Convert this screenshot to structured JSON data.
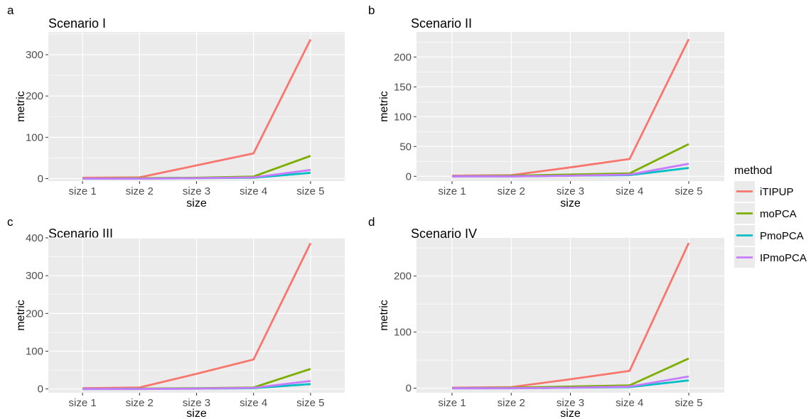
{
  "legend": {
    "title": "method",
    "placement": "right",
    "items": [
      {
        "label": "iTIPUP",
        "color": "#F8766D"
      },
      {
        "label": "moPCA",
        "color": "#7CAE00"
      },
      {
        "label": "PmoPCA",
        "color": "#00BFC4"
      },
      {
        "label": "IPmoPCA",
        "color": "#C77CFF"
      }
    ]
  },
  "colors": {
    "panel_bg": "#EBEBEB",
    "grid": "#FFFFFF",
    "tick_text": "#4D4D4D"
  },
  "chart_data": [
    {
      "type": "line",
      "letter": "a",
      "title": "Scenario I",
      "xlabel": "size",
      "ylabel": "metric",
      "categories": [
        "size 1",
        "size 2",
        "size 3",
        "size 4",
        "size 5"
      ],
      "ylim": [
        -6,
        355
      ],
      "yticks": [
        0,
        100,
        200,
        300
      ],
      "grid": true,
      "series": [
        {
          "name": "iTIPUP",
          "values": [
            2,
            3,
            32,
            61,
            337
          ]
        },
        {
          "name": "moPCA",
          "values": [
            0,
            1,
            2,
            5,
            55
          ]
        },
        {
          "name": "PmoPCA",
          "values": [
            0,
            0,
            1,
            2,
            14
          ]
        },
        {
          "name": "IPmoPCA",
          "values": [
            0,
            0,
            1,
            3,
            21
          ]
        }
      ]
    },
    {
      "type": "line",
      "letter": "b",
      "title": "Scenario II",
      "xlabel": "size",
      "ylabel": "metric",
      "categories": [
        "size 1",
        "size 2",
        "size 3",
        "size 4",
        "size 5"
      ],
      "ylim": [
        -8,
        242
      ],
      "yticks": [
        0,
        50,
        100,
        150,
        200
      ],
      "grid": true,
      "series": [
        {
          "name": "iTIPUP",
          "values": [
            1,
            2,
            15,
            29,
            230
          ]
        },
        {
          "name": "moPCA",
          "values": [
            0,
            1,
            3,
            5,
            54
          ]
        },
        {
          "name": "PmoPCA",
          "values": [
            0,
            0,
            1,
            2,
            14
          ]
        },
        {
          "name": "IPmoPCA",
          "values": [
            0,
            0,
            1,
            3,
            21
          ]
        }
      ]
    },
    {
      "type": "line",
      "letter": "c",
      "title": "Scenario III",
      "xlabel": "size",
      "ylabel": "metric",
      "categories": [
        "size 1",
        "size 2",
        "size 3",
        "size 4",
        "size 5"
      ],
      "ylim": [
        -10,
        400
      ],
      "yticks": [
        0,
        100,
        200,
        300,
        400
      ],
      "grid": true,
      "series": [
        {
          "name": "iTIPUP",
          "values": [
            2,
            4,
            40,
            78,
            386
          ]
        },
        {
          "name": "moPCA",
          "values": [
            0,
            1,
            2,
            4,
            53
          ]
        },
        {
          "name": "PmoPCA",
          "values": [
            0,
            0,
            1,
            2,
            13
          ]
        },
        {
          "name": "IPmoPCA",
          "values": [
            0,
            0,
            1,
            3,
            21
          ]
        }
      ]
    },
    {
      "type": "line",
      "letter": "d",
      "title": "Scenario IV",
      "xlabel": "size",
      "ylabel": "metric",
      "categories": [
        "size 1",
        "size 2",
        "size 3",
        "size 4",
        "size 5"
      ],
      "ylim": [
        -8,
        268
      ],
      "yticks": [
        0,
        100,
        200
      ],
      "grid": true,
      "series": [
        {
          "name": "iTIPUP",
          "values": [
            1,
            2,
            16,
            31,
            259
          ]
        },
        {
          "name": "moPCA",
          "values": [
            0,
            1,
            3,
            5,
            53
          ]
        },
        {
          "name": "PmoPCA",
          "values": [
            0,
            0,
            1,
            2,
            14
          ]
        },
        {
          "name": "IPmoPCA",
          "values": [
            0,
            0,
            1,
            3,
            21
          ]
        }
      ]
    }
  ]
}
